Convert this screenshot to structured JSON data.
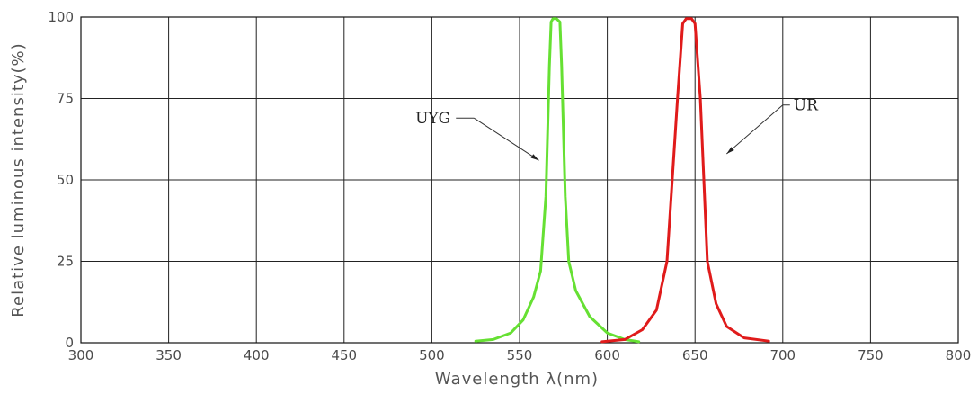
{
  "chart_data": {
    "type": "line",
    "xlabel": "Wavelength  λ(nm)",
    "ylabel": "Relative luminous intensity(%)",
    "xlim": [
      300,
      800
    ],
    "ylim": [
      0,
      100
    ],
    "xticks": [
      300,
      350,
      400,
      450,
      500,
      550,
      600,
      650,
      700,
      750,
      800
    ],
    "yticks": [
      0,
      25,
      50,
      75,
      100
    ],
    "grid": true,
    "series": [
      {
        "name": "UYG",
        "color": "#66e033",
        "points": [
          [
            525,
            0.5
          ],
          [
            535,
            1
          ],
          [
            545,
            3
          ],
          [
            552,
            7
          ],
          [
            558,
            14
          ],
          [
            562,
            22
          ],
          [
            565,
            45
          ],
          [
            567,
            85
          ],
          [
            568,
            98.5
          ],
          [
            569,
            99.5
          ],
          [
            571,
            99.5
          ],
          [
            573,
            98.5
          ],
          [
            574,
            85
          ],
          [
            576,
            45
          ],
          [
            578,
            25
          ],
          [
            582,
            16
          ],
          [
            590,
            8
          ],
          [
            600,
            3
          ],
          [
            610,
            1
          ],
          [
            618,
            0.3
          ]
        ]
      },
      {
        "name": "UR",
        "color": "#e01b1b",
        "points": [
          [
            597,
            0.3
          ],
          [
            610,
            1
          ],
          [
            620,
            4
          ],
          [
            628,
            10
          ],
          [
            634,
            25
          ],
          [
            640,
            75
          ],
          [
            643,
            98
          ],
          [
            645,
            99.5
          ],
          [
            648,
            99.5
          ],
          [
            650,
            98
          ],
          [
            653,
            75
          ],
          [
            657,
            25
          ],
          [
            662,
            12
          ],
          [
            668,
            5
          ],
          [
            678,
            1.5
          ],
          [
            692,
            0.5
          ]
        ]
      }
    ],
    "annotations": [
      {
        "text": "UYG",
        "from": [
          524,
          69
        ],
        "to": [
          561,
          56
        ]
      },
      {
        "text": "UR",
        "from": [
          700,
          73
        ],
        "to": [
          668,
          58
        ]
      }
    ]
  }
}
